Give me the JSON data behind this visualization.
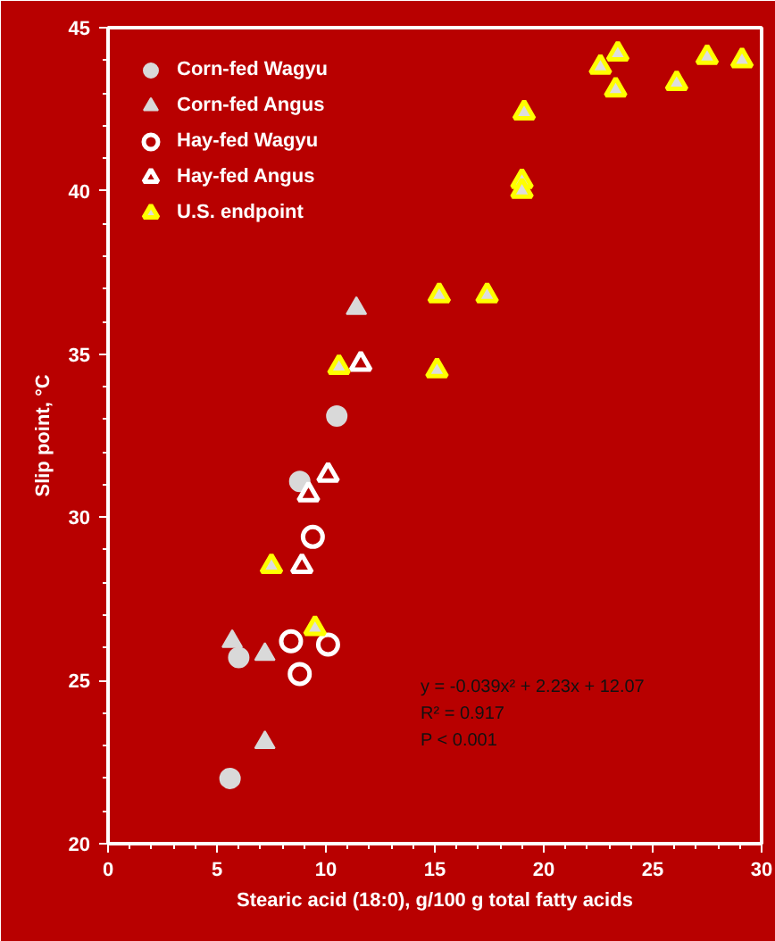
{
  "chart_data": {
    "type": "scatter",
    "xlabel": "Stearic acid (18:0), g/100 g total fatty acids",
    "ylabel": "Slip point, °C",
    "xlim": [
      0,
      30
    ],
    "ylim": [
      20,
      45
    ],
    "xticks": [
      0,
      5,
      10,
      15,
      20,
      25,
      30
    ],
    "yticks": [
      20,
      25,
      30,
      35,
      40,
      45
    ],
    "grid": false,
    "legend": "top left",
    "series": [
      {
        "name": "Corn-fed Wagyu",
        "color": "#d9d9d9",
        "marker": "circle",
        "x": [
          10.5,
          8.8,
          6.0,
          5.6
        ],
        "values": [
          33.1,
          31.1,
          25.7,
          22.0
        ]
      },
      {
        "name": "Corn-fed Angus",
        "color": "#d9d9d9",
        "marker": "triangle",
        "x": [
          11.4,
          5.7,
          7.2,
          7.2
        ],
        "values": [
          36.4,
          26.2,
          25.8,
          23.1
        ]
      },
      {
        "name": "Hay-fed Wagyu",
        "color": "#ffffff",
        "marker": "circle",
        "x": [
          9.4,
          8.4,
          10.1,
          8.8
        ],
        "values": [
          29.4,
          26.2,
          26.1,
          25.2
        ]
      },
      {
        "name": "Hay-fed Angus",
        "color": "#ffffff",
        "marker": "triangle",
        "x": [
          11.6,
          10.1,
          9.2,
          8.9
        ],
        "values": [
          34.7,
          31.3,
          30.7,
          28.5
        ]
      },
      {
        "name": "U.S. endpoint",
        "color": "#ffff00",
        "marker": "triangle",
        "x": [
          23.4,
          22.6,
          23.3,
          26.1,
          27.5,
          29.1,
          19.1,
          19.0,
          19.0,
          15.2,
          17.4,
          15.1,
          10.6,
          7.5,
          9.5
        ],
        "values": [
          44.2,
          43.8,
          43.1,
          43.3,
          44.1,
          44.0,
          42.4,
          40.3,
          40.0,
          36.8,
          36.8,
          34.5,
          34.6,
          28.5,
          26.6
        ]
      }
    ],
    "annotations": [
      "y = -0.039x² + 2.23x + 12.07",
      "R² = 0.917",
      "P < 0.001"
    ]
  }
}
